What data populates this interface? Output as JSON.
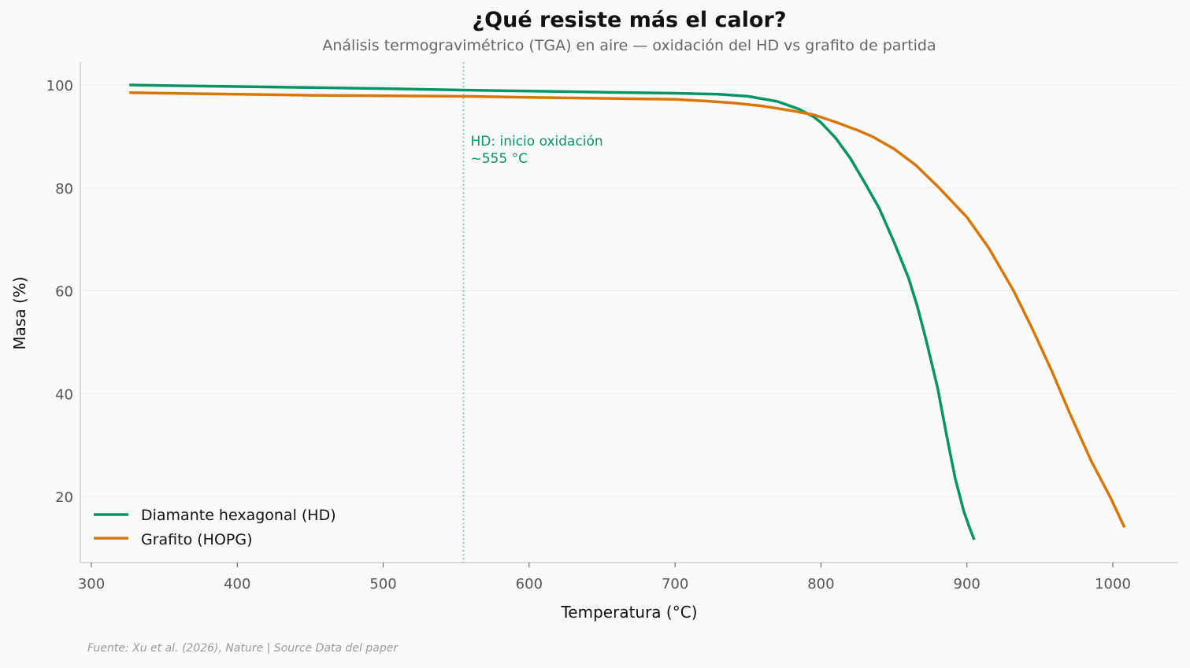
{
  "header": {
    "title": "¿Qué resiste más el calor?",
    "subtitle": "Análisis termogravimétrico (TGA) en aire — oxidación del HD vs grafito de partida"
  },
  "footer": {
    "source": "Fuente: Xu et al. (2026), Nature | Source Data del paper"
  },
  "colors": {
    "hd": "#079467",
    "hopg": "#d97706",
    "grid": "#ebebeb",
    "axis": "#c8c8c8",
    "background": "#fafafa"
  },
  "chart_data": {
    "type": "line",
    "title": "¿Qué resiste más el calor?",
    "subtitle": "Análisis termogravimétrico (TGA) en aire — oxidación del HD vs grafito de partida",
    "xlabel": "Temperatura (°C)",
    "ylabel": "Masa (%)",
    "xlim": [
      293,
      1044
    ],
    "ylim": [
      7,
      104.5
    ],
    "xticks": [
      300,
      400,
      500,
      600,
      700,
      800,
      900,
      1000
    ],
    "yticks": [
      20,
      40,
      60,
      80,
      100
    ],
    "grid": "horizontal",
    "legend_position": "lower left",
    "series": [
      {
        "name": "Diamante hexagonal (HD)",
        "color": "#079467",
        "x": [
          326,
          350,
          400,
          450,
          500,
          555,
          600,
          650,
          700,
          730,
          750,
          770,
          785,
          795,
          800,
          810,
          820,
          830,
          840,
          850,
          860,
          866,
          872,
          880,
          886,
          892,
          898,
          902,
          905
        ],
        "y": [
          100.0,
          99.9,
          99.7,
          99.5,
          99.3,
          99.0,
          98.8,
          98.6,
          98.4,
          98.2,
          97.8,
          96.8,
          95.3,
          93.8,
          92.7,
          89.7,
          85.8,
          81.0,
          76.0,
          69.5,
          62.5,
          57.0,
          50.5,
          41.0,
          32.0,
          23.5,
          17.0,
          13.8,
          11.6
        ]
      },
      {
        "name": "Grafito (HOPG)",
        "color": "#d97706",
        "x": [
          326,
          350,
          400,
          450,
          500,
          555,
          600,
          650,
          700,
          720,
          740,
          760,
          780,
          795,
          810,
          825,
          835,
          850,
          865,
          881,
          900,
          915,
          932,
          945,
          958,
          970,
          985,
          998,
          1008
        ],
        "y": [
          98.5,
          98.4,
          98.2,
          98.0,
          97.9,
          97.8,
          97.6,
          97.4,
          97.2,
          96.9,
          96.5,
          95.9,
          95.0,
          94.2,
          92.8,
          91.2,
          90.0,
          87.6,
          84.4,
          80.0,
          74.3,
          68.3,
          60.0,
          52.5,
          44.5,
          36.5,
          27.0,
          20.0,
          14.0
        ]
      }
    ],
    "annotations": [
      {
        "type": "vline",
        "x": 555,
        "style": "dotted",
        "color": "#079467",
        "text_lines": [
          "HD: inicio oxidación",
          "~555 °C"
        ]
      }
    ]
  }
}
